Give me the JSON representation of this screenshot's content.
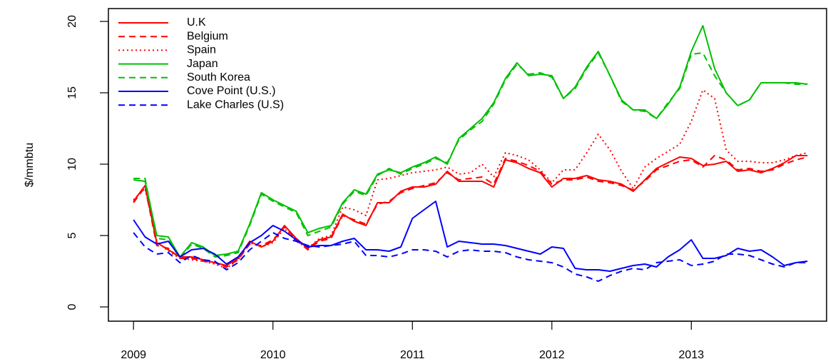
{
  "chart_data": {
    "type": "line",
    "ylabel": "$/mmbtu",
    "x": [
      2009,
      2009.083,
      2009.167,
      2009.25,
      2009.333,
      2009.417,
      2009.5,
      2009.583,
      2009.667,
      2009.75,
      2009.833,
      2009.917,
      2010,
      2010.083,
      2010.167,
      2010.25,
      2010.333,
      2010.417,
      2010.5,
      2010.583,
      2010.667,
      2010.75,
      2010.833,
      2010.917,
      2011,
      2011.083,
      2011.167,
      2011.25,
      2011.333,
      2011.417,
      2011.5,
      2011.583,
      2011.667,
      2011.75,
      2011.833,
      2011.917,
      2012,
      2012.083,
      2012.167,
      2012.25,
      2012.333,
      2012.417,
      2012.5,
      2012.583,
      2012.667,
      2012.75,
      2012.833,
      2012.917,
      2013,
      2013.083,
      2013.167,
      2013.25,
      2013.333,
      2013.417,
      2013.5,
      2013.583,
      2013.667,
      2013.75,
      2013.833
    ],
    "xlim": [
      2008.82,
      2013.97
    ],
    "xticks": [
      2009,
      2010,
      2011,
      2012,
      2013
    ],
    "ylim": [
      -1,
      20.9
    ],
    "yticks": [
      0,
      5,
      10,
      15,
      20
    ],
    "legend": "topleft",
    "series": [
      {
        "name": "U.K",
        "color": "#ff0000",
        "dash": "solid",
        "values": [
          7.4,
          8.5,
          4.5,
          4.0,
          3.5,
          3.5,
          3.3,
          3.1,
          2.9,
          3.4,
          4.6,
          4.2,
          4.6,
          5.7,
          4.8,
          4.1,
          4.7,
          4.9,
          6.5,
          6.0,
          5.7,
          7.3,
          7.3,
          8.1,
          8.4,
          8.4,
          8.6,
          9.5,
          8.8,
          8.8,
          8.8,
          8.4,
          10.3,
          10.1,
          9.7,
          9.4,
          8.4,
          9.0,
          9.0,
          9.2,
          8.9,
          8.8,
          8.6,
          8.1,
          8.9,
          9.7,
          10.1,
          10.5,
          10.4,
          9.9,
          10.0,
          10.2,
          9.5,
          9.6,
          9.4,
          9.7,
          10.1,
          10.6,
          10.6
        ]
      },
      {
        "name": "Belgium",
        "color": "#ff0000",
        "dash": "dashed",
        "values": [
          7.3,
          8.4,
          4.3,
          4.1,
          3.4,
          3.4,
          3.2,
          3.1,
          2.8,
          3.3,
          4.4,
          4.3,
          4.7,
          5.6,
          4.7,
          4.0,
          4.6,
          4.8,
          6.4,
          6.1,
          5.8,
          7.2,
          7.4,
          8.0,
          8.3,
          8.5,
          8.7,
          9.4,
          8.9,
          9.0,
          9.1,
          8.6,
          10.4,
          10.2,
          9.9,
          9.5,
          8.6,
          8.9,
          8.9,
          9.1,
          8.8,
          8.7,
          8.5,
          8.2,
          8.8,
          9.6,
          9.9,
          10.2,
          10.3,
          9.8,
          10.6,
          10.3,
          9.6,
          9.7,
          9.5,
          9.6,
          10.0,
          10.3,
          10.5
        ]
      },
      {
        "name": "Spain",
        "color": "#ff0000",
        "dash": "dotted",
        "values": [
          7.5,
          8.3,
          4.6,
          3.9,
          3.4,
          3.3,
          3.2,
          3.0,
          2.7,
          3.3,
          4.5,
          4.2,
          4.5,
          5.5,
          4.6,
          4.1,
          4.8,
          5.0,
          7.0,
          6.8,
          6.4,
          8.9,
          9.0,
          9.2,
          9.4,
          9.5,
          9.6,
          9.8,
          9.3,
          9.4,
          10.0,
          9.1,
          10.8,
          10.6,
          10.3,
          9.6,
          8.7,
          9.6,
          9.6,
          10.8,
          12.1,
          11.0,
          9.5,
          8.3,
          9.8,
          10.4,
          10.9,
          11.4,
          13.0,
          15.2,
          14.6,
          11.0,
          10.2,
          10.2,
          10.1,
          10.1,
          10.3,
          10.6,
          10.8
        ]
      },
      {
        "name": "Japan",
        "color": "#00c000",
        "dash": "solid",
        "values": [
          8.9,
          8.8,
          5.0,
          4.9,
          3.5,
          4.5,
          4.2,
          3.6,
          3.7,
          3.9,
          5.8,
          8.0,
          7.5,
          7.1,
          6.7,
          5.2,
          5.5,
          5.7,
          7.3,
          8.2,
          7.9,
          9.3,
          9.6,
          9.4,
          9.8,
          10.1,
          10.5,
          10.0,
          11.8,
          12.5,
          13.2,
          14.3,
          16.0,
          17.1,
          16.2,
          16.3,
          16.2,
          14.6,
          15.4,
          16.8,
          17.9,
          16.2,
          14.5,
          13.8,
          13.8,
          13.2,
          14.2,
          15.4,
          17.9,
          19.7,
          16.7,
          15.0,
          14.1,
          14.5,
          15.7,
          15.7,
          15.7,
          15.7,
          15.6
        ]
      },
      {
        "name": "South Korea",
        "color": "#00c000",
        "dash": "dashed",
        "values": [
          9.0,
          9.0,
          4.8,
          4.7,
          3.4,
          4.4,
          4.1,
          3.5,
          3.6,
          3.8,
          5.7,
          7.9,
          7.4,
          7.0,
          6.6,
          5.0,
          5.3,
          5.6,
          7.2,
          8.1,
          7.8,
          9.2,
          9.7,
          9.3,
          9.7,
          10.0,
          10.4,
          10.1,
          11.7,
          12.4,
          13.0,
          14.2,
          15.9,
          17.0,
          16.3,
          16.4,
          16.1,
          14.6,
          15.3,
          16.7,
          17.8,
          16.2,
          14.4,
          13.8,
          13.7,
          13.2,
          14.3,
          15.3,
          17.7,
          17.8,
          16.2,
          15.0,
          14.1,
          14.5,
          15.7,
          15.7,
          15.7,
          15.6,
          15.6
        ]
      },
      {
        "name": "Cove Point (U.S.)",
        "color": "#0000ff",
        "dash": "solid",
        "values": [
          6.1,
          4.9,
          4.4,
          4.6,
          3.5,
          4.0,
          4.1,
          3.7,
          3.0,
          3.5,
          4.5,
          5.0,
          5.7,
          5.3,
          4.7,
          4.2,
          4.3,
          4.3,
          4.6,
          4.8,
          4.0,
          4.0,
          3.9,
          4.2,
          6.2,
          6.8,
          7.4,
          4.2,
          4.6,
          4.5,
          4.4,
          4.4,
          4.3,
          4.1,
          3.9,
          3.7,
          4.2,
          4.1,
          2.7,
          2.6,
          2.6,
          2.5,
          2.7,
          2.9,
          3.0,
          2.8,
          3.5,
          4.0,
          4.7,
          3.4,
          3.4,
          3.6,
          4.1,
          3.9,
          4.0,
          3.5,
          2.9,
          3.1,
          3.2
        ]
      },
      {
        "name": "Lake Charles (U.S)",
        "color": "#0000ff",
        "dash": "dashed",
        "values": [
          5.2,
          4.2,
          3.7,
          3.8,
          3.1,
          3.6,
          3.3,
          3.2,
          2.6,
          3.1,
          4.0,
          4.6,
          5.2,
          4.8,
          4.6,
          4.3,
          4.2,
          4.3,
          4.4,
          4.6,
          3.6,
          3.6,
          3.5,
          3.7,
          4.0,
          4.0,
          3.9,
          3.5,
          3.9,
          4.0,
          3.9,
          3.9,
          3.8,
          3.5,
          3.3,
          3.2,
          3.1,
          2.8,
          2.3,
          2.1,
          1.8,
          2.2,
          2.5,
          2.7,
          2.6,
          3.1,
          3.2,
          3.3,
          2.9,
          3.0,
          3.2,
          3.7,
          3.7,
          3.6,
          3.3,
          3.0,
          2.8,
          3.1,
          3.1
        ]
      }
    ]
  }
}
